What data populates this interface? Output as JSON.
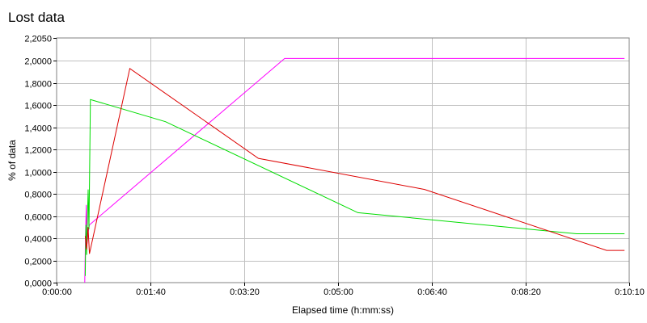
{
  "chart_data": {
    "type": "line",
    "title": "Lost data",
    "xlabel": "Elapsed time (h:mm:ss)",
    "ylabel": "% of data",
    "xlim": [
      0,
      610
    ],
    "ylim": [
      0,
      2.205
    ],
    "grid": true,
    "legend": "none",
    "x_ticks": [
      {
        "value": 0,
        "label": "0:00:00"
      },
      {
        "value": 100,
        "label": "0:01:40"
      },
      {
        "value": 200,
        "label": "0:03:20"
      },
      {
        "value": 300,
        "label": "0:05:00"
      },
      {
        "value": 400,
        "label": "0:06:40"
      },
      {
        "value": 500,
        "label": "0:08:20"
      },
      {
        "value": 610,
        "label": "0:10:10"
      }
    ],
    "y_ticks": [
      {
        "value": 0,
        "label": "0,0000"
      },
      {
        "value": 0.2,
        "label": "0,2000"
      },
      {
        "value": 0.4,
        "label": "0,4000"
      },
      {
        "value": 0.6,
        "label": "0,6000"
      },
      {
        "value": 0.8,
        "label": "0,8000"
      },
      {
        "value": 1.0,
        "label": "1,0000"
      },
      {
        "value": 1.2,
        "label": "1,2000"
      },
      {
        "value": 1.4,
        "label": "1,4000"
      },
      {
        "value": 1.6,
        "label": "1,6000"
      },
      {
        "value": 1.8,
        "label": "1,8000"
      },
      {
        "value": 2.0,
        "label": "2,0000"
      },
      {
        "value": 2.205,
        "label": "2,2050"
      }
    ],
    "series": [
      {
        "color": "#ff00ff",
        "points": [
          [
            30,
            0
          ],
          [
            30.8,
            0.42
          ],
          [
            31.6,
            0.7
          ],
          [
            32.4,
            0.35
          ],
          [
            33.5,
            0.45
          ],
          [
            35,
            0.52
          ],
          [
            243,
            2.02
          ],
          [
            605,
            2.02
          ]
        ]
      },
      {
        "color": "#00dd00",
        "points": [
          [
            30.5,
            0.06
          ],
          [
            31.2,
            0.52
          ],
          [
            32,
            0.25
          ],
          [
            32.8,
            0.58
          ],
          [
            33.6,
            0.84
          ],
          [
            34.5,
            0.48
          ],
          [
            36,
            1.65
          ],
          [
            116,
            1.45
          ],
          [
            321,
            0.63
          ],
          [
            554,
            0.44
          ],
          [
            605,
            0.44
          ]
        ]
      },
      {
        "color": "#dd0000",
        "points": [
          [
            30.5,
            0.42
          ],
          [
            32,
            0.3
          ],
          [
            33.5,
            0.5
          ],
          [
            35,
            0.26
          ],
          [
            78,
            1.93
          ],
          [
            215,
            1.12
          ],
          [
            392,
            0.84
          ],
          [
            586,
            0.29
          ],
          [
            605,
            0.29
          ]
        ]
      }
    ]
  }
}
